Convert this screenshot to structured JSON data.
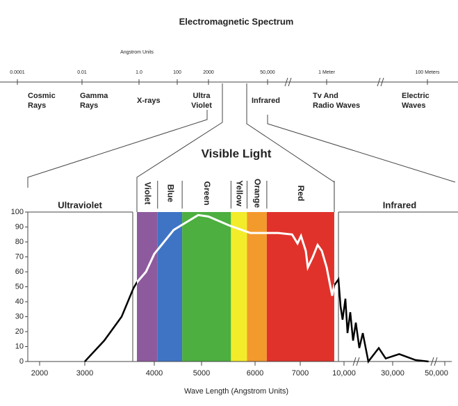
{
  "header": {
    "title": "Electromagnetic Spectrum",
    "unit_note": "Angstrom Units"
  },
  "spectrum": {
    "scale": [
      "0.0001",
      "0.01",
      "1.0",
      "100",
      "2000",
      "50,000",
      "1 Meter",
      "100 Meters"
    ],
    "regions": [
      {
        "lines": [
          "Cosmic",
          "Rays"
        ]
      },
      {
        "lines": [
          "Gamma",
          "Rays"
        ]
      },
      {
        "lines": [
          "X-rays"
        ]
      },
      {
        "lines": [
          "Ultra",
          "Violet"
        ]
      },
      {
        "lines": [
          "Infrared"
        ]
      },
      {
        "lines": [
          "Tv And",
          "Radio Waves"
        ]
      },
      {
        "lines": [
          "Electric",
          "Waves"
        ]
      }
    ]
  },
  "chart_data": {
    "type": "line",
    "title": "Visible Light",
    "x_label": "Wave Length (Angstrom Units)",
    "regions": {
      "left": "Ultraviolet",
      "right": "Infrared"
    },
    "bands": [
      {
        "name": "Violet",
        "color": "#8e5a9e",
        "from": 3750,
        "to": 4070
      },
      {
        "name": "Blue",
        "color": "#3f74c4",
        "from": 4070,
        "to": 4590
      },
      {
        "name": "Green",
        "color": "#4caf3f",
        "from": 4590,
        "to": 5550
      },
      {
        "name": "Yellow",
        "color": "#f2ec2a",
        "from": 5550,
        "to": 5850
      },
      {
        "name": "Orange",
        "color": "#f39a2d",
        "from": 5850,
        "to": 6260
      },
      {
        "name": "Red",
        "color": "#e0322b",
        "from": 6260,
        "to": 9330
      }
    ],
    "x": [
      3000,
      3280,
      3530,
      3700,
      3750,
      3880,
      4000,
      4410,
      4930,
      5130,
      5520,
      5910,
      6510,
      6820,
      6940,
      7050,
      7380,
      7520,
      7860,
      8190,
      8480,
      8810,
      9190,
      9330,
      9620,
      9760,
      9900,
      10570,
      11430,
      12570,
      13710,
      14860,
      16290,
      17710,
      20000,
      24290,
      27140,
      32500,
      38750,
      43750
    ],
    "values": [
      0,
      14,
      30,
      49,
      53,
      60,
      72,
      88,
      98,
      97,
      91,
      86,
      86,
      85,
      79,
      84,
      74,
      63,
      70,
      78,
      74,
      63,
      44,
      51,
      55,
      37,
      28,
      42,
      19,
      33,
      14,
      26,
      9,
      19,
      0,
      9,
      2,
      5,
      1,
      0
    ],
    "color": "#000000",
    "xlim": [
      1500,
      50000
    ],
    "ylim": [
      0,
      100
    ],
    "xticks": [
      2000,
      3000,
      4000,
      5000,
      6000,
      7000,
      {
        "value": 10000,
        "label": "10,000"
      },
      {
        "value": 30000,
        "label": "30,000"
      },
      {
        "value": 50000,
        "label": "50,000"
      }
    ],
    "yticks": [
      0,
      10,
      20,
      30,
      40,
      50,
      60,
      70,
      80,
      90,
      100
    ]
  }
}
